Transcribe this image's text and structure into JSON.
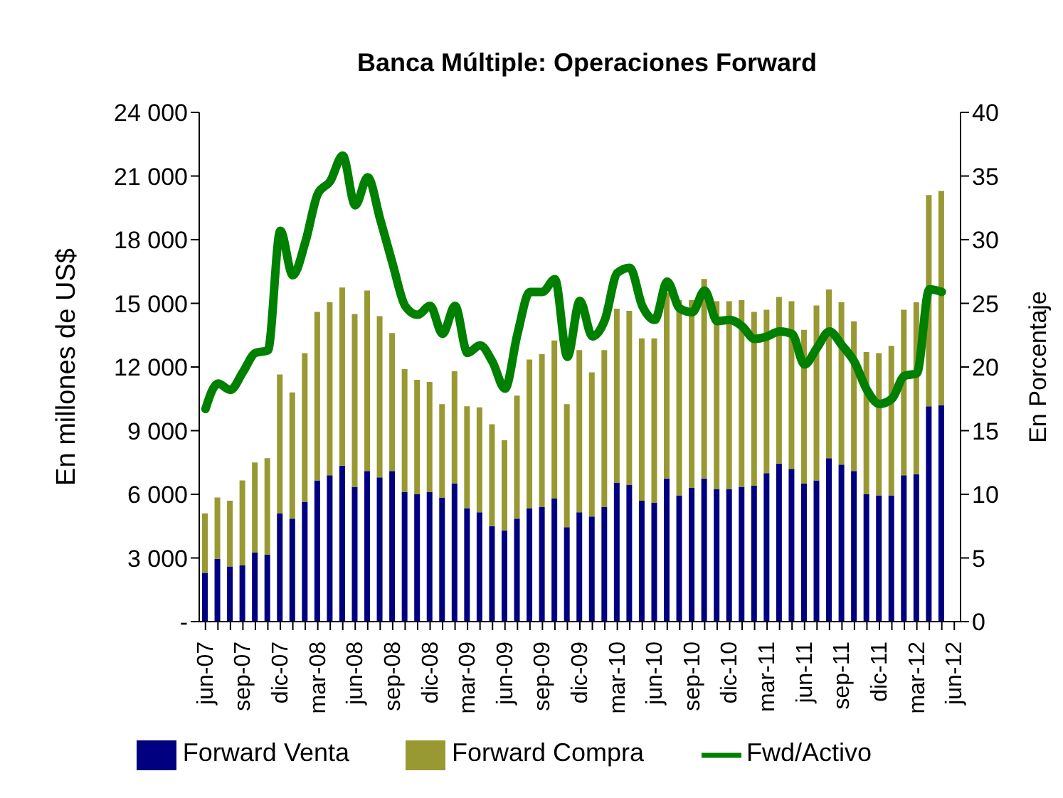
{
  "chart_data": {
    "type": "bar",
    "title": "Banca Múltiple: Operaciones Forward",
    "ylabel": "En millones de US$",
    "y2label": "En Porcentaje",
    "stacked": true,
    "legend": "bottom",
    "categories": [
      "jun-07",
      null,
      null,
      "sep-07",
      null,
      null,
      "dic-07",
      null,
      null,
      "mar-08",
      null,
      null,
      "jun-08",
      null,
      null,
      "sep-08",
      null,
      null,
      "dic-08",
      null,
      null,
      "mar-09",
      null,
      null,
      "jun-09",
      null,
      null,
      "sep-09",
      null,
      null,
      "dic-09",
      null,
      null,
      "mar-10",
      null,
      null,
      "jun-10",
      null,
      null,
      "sep-10",
      null,
      null,
      "dic-10",
      null,
      null,
      "mar-11",
      null,
      null,
      "jun-11",
      null,
      null,
      "sep-11",
      null,
      null,
      "dic-11",
      null,
      null,
      "mar-12",
      null,
      null,
      "jun-12"
    ],
    "series": [
      {
        "name": "Forward Venta",
        "color": "#000080",
        "values": [
          2300,
          2950,
          2600,
          2650,
          3250,
          3150,
          5100,
          4850,
          5650,
          6650,
          6900,
          7350,
          6350,
          7100,
          6800,
          7100,
          6100,
          6000,
          6100,
          5850,
          6500,
          5350,
          5150,
          4500,
          4300,
          4850,
          5350,
          5400,
          5800,
          4450,
          5150,
          4950,
          5400,
          6550,
          6450,
          5700,
          5600,
          6750,
          5950,
          6300,
          6750,
          6250,
          6250,
          6350,
          6400,
          7000,
          7450,
          7200,
          6500,
          6650,
          7700,
          7400,
          7100,
          6000,
          5950,
          5950,
          6900,
          6950,
          10150,
          10200,
          null
        ]
      },
      {
        "name": "Forward Compra",
        "color": "#999933",
        "values": [
          2800,
          2900,
          3100,
          4000,
          4250,
          4550,
          6550,
          5950,
          7000,
          7950,
          8150,
          8400,
          8150,
          8500,
          7600,
          6500,
          5800,
          5400,
          5200,
          4400,
          5300,
          4800,
          4950,
          4800,
          4250,
          5800,
          7000,
          7200,
          7450,
          5800,
          7650,
          6800,
          7400,
          8200,
          8200,
          7650,
          7750,
          8750,
          9200,
          8850,
          9400,
          8850,
          8850,
          8800,
          8200,
          7700,
          7850,
          7900,
          7250,
          8250,
          7950,
          7650,
          7050,
          6700,
          6700,
          7050,
          7800,
          8100,
          9950,
          10100,
          null
        ]
      },
      {
        "name": "Fwd/Activo",
        "type": "line",
        "axis": "y2",
        "color": "#008000",
        "values": [
          16.7,
          18.7,
          18.2,
          19.6,
          21.1,
          21.3,
          30.7,
          27.2,
          29.8,
          33.6,
          34.6,
          36.6,
          32.7,
          34.9,
          31.6,
          28.1,
          24.8,
          24.1,
          24.8,
          22.6,
          24.8,
          21.1,
          21.7,
          20.4,
          18.3,
          22.6,
          25.9,
          25.9,
          26.9,
          20.8,
          25.2,
          22.4,
          23.7,
          27.4,
          27.8,
          24.8,
          23.7,
          26.7,
          24.6,
          24.3,
          26.0,
          23.6,
          23.7,
          23.2,
          22.2,
          22.4,
          22.8,
          22.6,
          20.2,
          21.5,
          22.8,
          21.7,
          20.4,
          18.2,
          17.1,
          17.5,
          19.3,
          19.5,
          26.1,
          25.9,
          null
        ]
      }
    ],
    "ylim": [
      0,
      24000
    ],
    "yticks": [
      {
        "value": 0,
        "label": "-"
      },
      {
        "value": 3000,
        "label": "3 000"
      },
      {
        "value": 6000,
        "label": "6 000"
      },
      {
        "value": 9000,
        "label": "9 000"
      },
      {
        "value": 12000,
        "label": "12 000"
      },
      {
        "value": 15000,
        "label": "15 000"
      },
      {
        "value": 18000,
        "label": "18 000"
      },
      {
        "value": 21000,
        "label": "21 000"
      },
      {
        "value": 24000,
        "label": "24 000"
      }
    ],
    "y2lim": [
      0,
      40
    ],
    "y2ticks": [
      0,
      5,
      10,
      15,
      20,
      25,
      30,
      35,
      40
    ]
  }
}
